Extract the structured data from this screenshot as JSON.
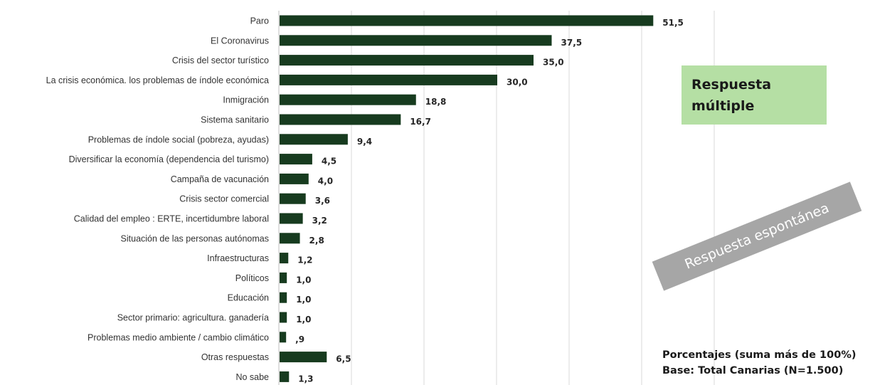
{
  "chart_data": {
    "type": "bar",
    "orientation": "horizontal",
    "categories": [
      "Paro",
      "El Coronavirus",
      "Crisis del sector turístico",
      "La crisis económica. los problemas de índole económica",
      "Inmigración",
      "Sistema sanitario",
      "Problemas de índole social (pobreza, ayudas)",
      "Diversificar la economía (dependencia del turismo)",
      "Campaña de vacunación",
      "Crisis sector comercial",
      "Calidad del empleo : ERTE, incertidumbre laboral",
      "Situación de las personas autónomas",
      "Infraestructuras",
      "Políticos",
      "Educación",
      "Sector primario: agricultura. ganadería",
      "Problemas medio ambiente / cambio climático",
      "Otras respuestas",
      "No sabe"
    ],
    "values": [
      51.5,
      37.5,
      35.0,
      30.0,
      18.8,
      16.7,
      9.4,
      4.5,
      4.0,
      3.6,
      3.2,
      2.8,
      1.2,
      1.0,
      1.0,
      1.0,
      0.9,
      6.5,
      1.3
    ],
    "value_labels": [
      "51,5",
      "37,5",
      "35,0",
      "30,0",
      "18,8",
      "16,7",
      "9,4",
      "4,5",
      "4,0",
      "3,6",
      "3,2",
      "2,8",
      "1,2",
      "1,0",
      "1,0",
      "1,0",
      ",9",
      "6,5",
      "1,3"
    ],
    "xlim": [
      0,
      60
    ],
    "grid": true,
    "color": "#173b1f"
  },
  "annotations": {
    "multiple_response": "Respuesta\nmúltiple",
    "spontaneous_response": "Respuesta espontánea",
    "note_percentages": "Porcentajes  (suma más de 100%)",
    "note_base": "Base: Total Canarias (N=1.500)"
  }
}
